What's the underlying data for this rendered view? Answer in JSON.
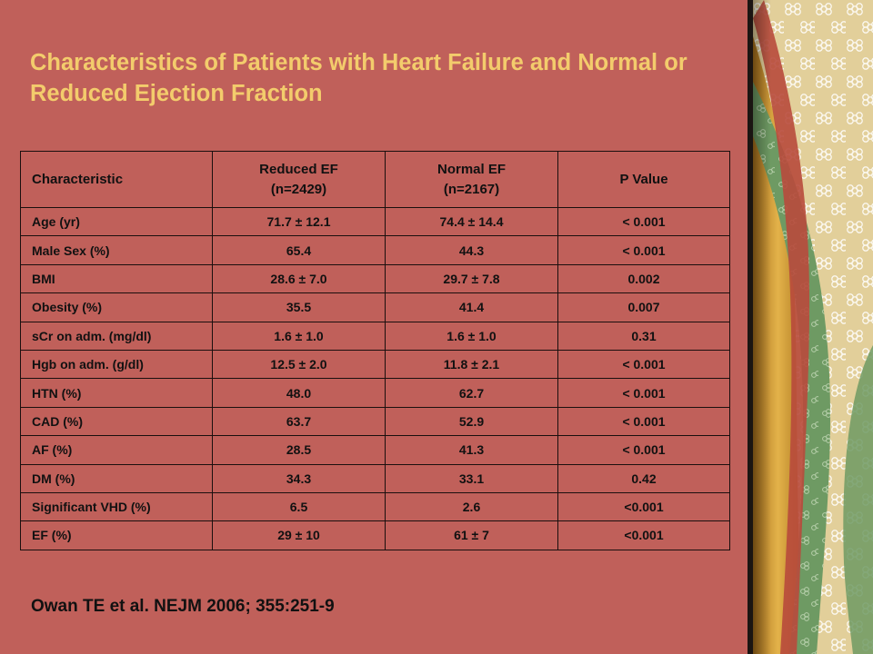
{
  "slide": {
    "title": "Characteristics of Patients with Heart Failure and Normal or Reduced Ejection Fraction",
    "citation": "Owan TE et al. NEJM 2006; 355:251-9"
  },
  "table": {
    "headers": [
      {
        "line1": "Characteristic",
        "line2": ""
      },
      {
        "line1": "Reduced EF",
        "line2": "(n=2429)"
      },
      {
        "line1": "Normal EF",
        "line2": "(n=2167)"
      },
      {
        "line1": "P Value",
        "line2": ""
      }
    ],
    "rows": [
      [
        "Age (yr)",
        "71.7 ± 12.1",
        "74.4 ± 14.4",
        "< 0.001"
      ],
      [
        "Male Sex (%)",
        "65.4",
        "44.3",
        "< 0.001"
      ],
      [
        "BMI",
        "28.6 ± 7.0",
        "29.7 ± 7.8",
        "0.002"
      ],
      [
        "Obesity (%)",
        "35.5",
        "41.4",
        "0.007"
      ],
      [
        "sCr on adm. (mg/dl)",
        "1.6 ± 1.0",
        "1.6 ± 1.0",
        "0.31"
      ],
      [
        "Hgb on adm. (g/dl)",
        "12.5 ± 2.0",
        "11.8 ± 2.1",
        "< 0.001"
      ],
      [
        "HTN (%)",
        "48.0",
        "62.7",
        "< 0.001"
      ],
      [
        "CAD (%)",
        "63.7",
        "52.9",
        "< 0.001"
      ],
      [
        "AF (%)",
        "28.5",
        "41.3",
        "< 0.001"
      ],
      [
        "DM (%)",
        "34.3",
        "33.1",
        "0.42"
      ],
      [
        "Significant VHD (%)",
        "6.5",
        "2.6",
        "<0.001"
      ],
      [
        "EF (%)",
        "29 ± 10",
        "61 ± 7",
        "<0.001"
      ]
    ]
  },
  "colors": {
    "background": "#c0605a",
    "title": "#f3cc6c",
    "text": "#111111",
    "border": "#1a0f0e",
    "deco_gold": "#d9a63a",
    "deco_green": "#6e9a63",
    "deco_cream": "#e2cf9a"
  }
}
